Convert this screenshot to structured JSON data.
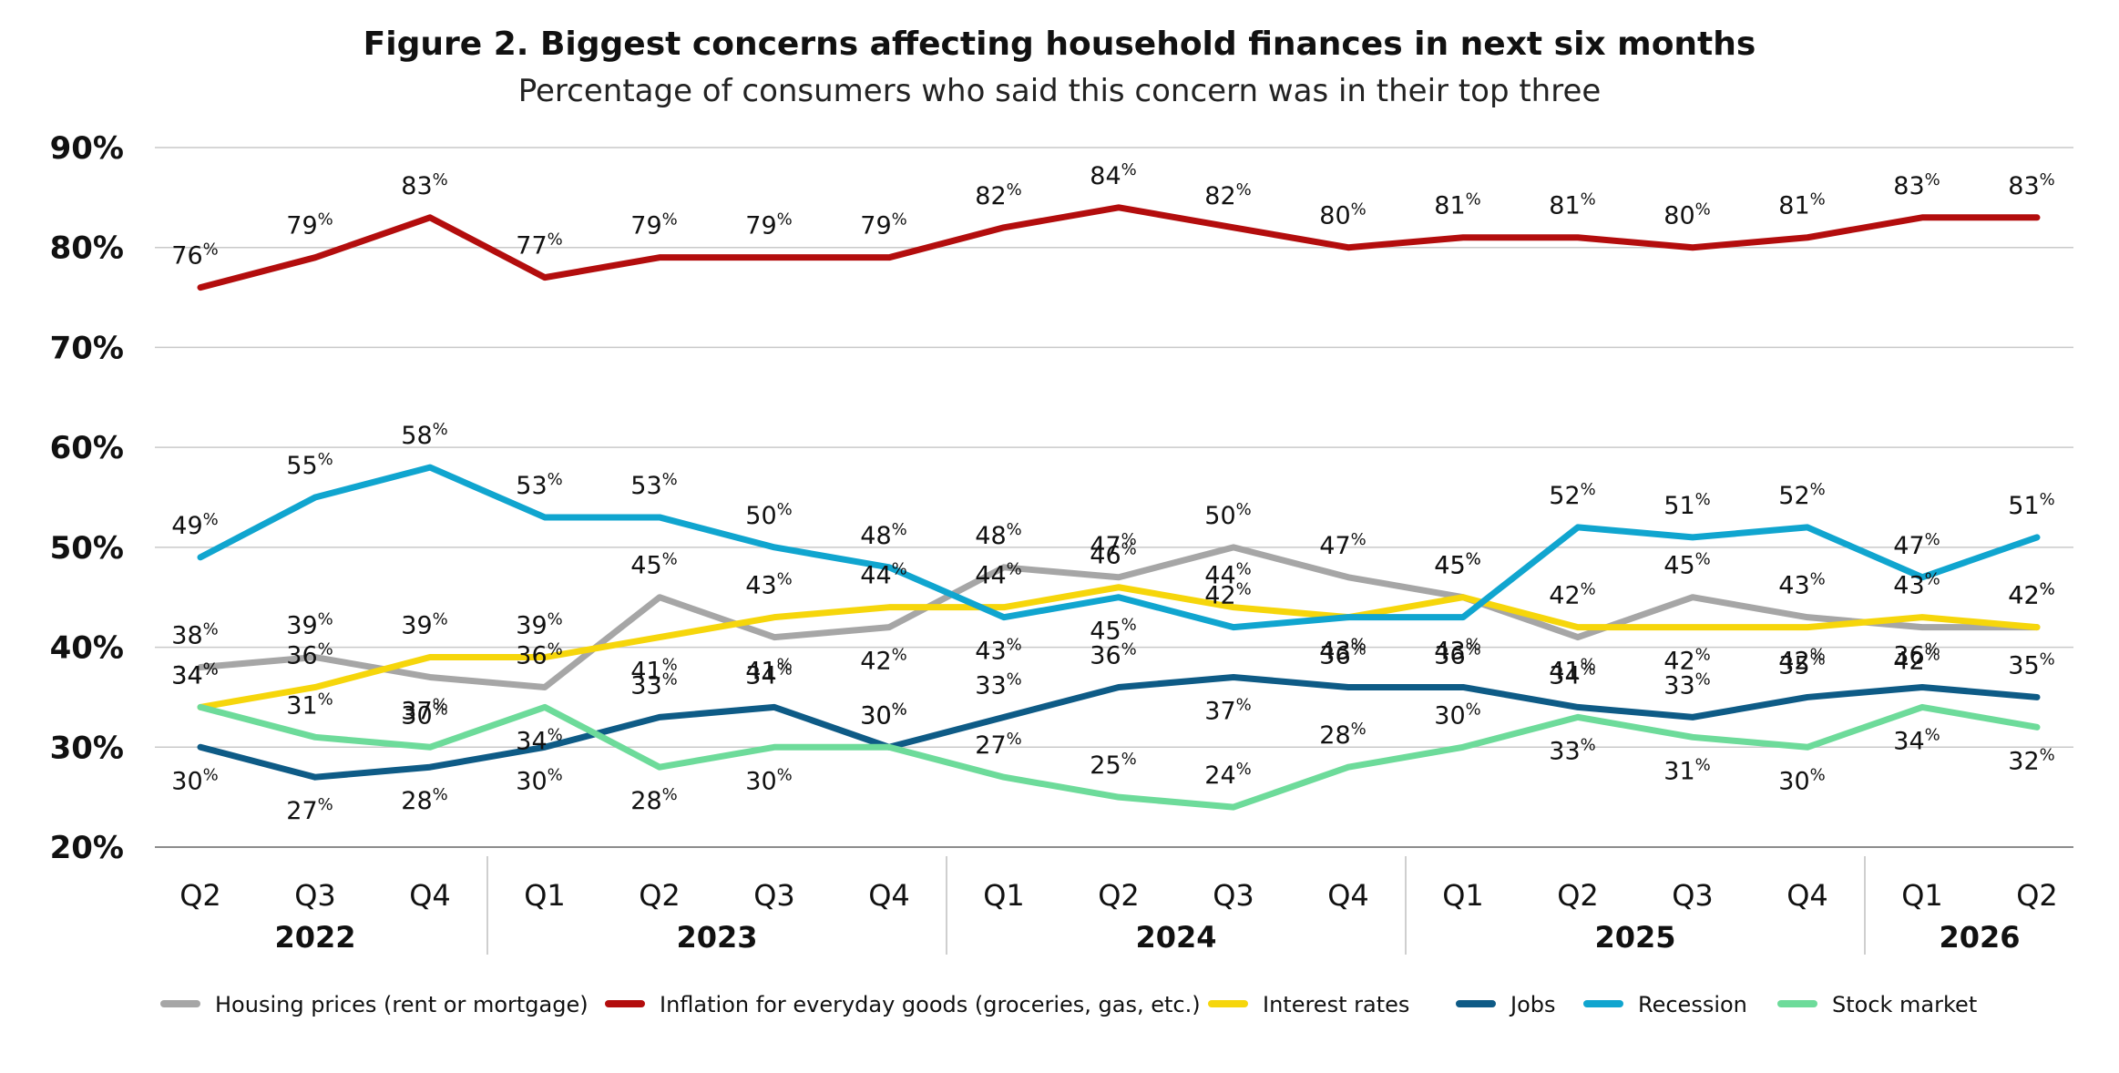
{
  "chart_data": {
    "type": "line",
    "title": "Figure 2. Biggest concerns affecting household finances in next six months",
    "subtitle": "Percentage of consumers who said this concern was in their top three",
    "x_categories": [
      "Q2",
      "Q3",
      "Q4",
      "Q1",
      "Q2",
      "Q3",
      "Q4",
      "Q1",
      "Q2",
      "Q3",
      "Q4",
      "Q1",
      "Q2",
      "Q3",
      "Q4",
      "Q1",
      "Q2"
    ],
    "year_groups": [
      {
        "year": "2022",
        "start": 0,
        "end": 2
      },
      {
        "year": "2023",
        "start": 3,
        "end": 6
      },
      {
        "year": "2024",
        "start": 7,
        "end": 10
      },
      {
        "year": "2025",
        "start": 11,
        "end": 14
      },
      {
        "year": "2026",
        "start": 15,
        "end": 16
      }
    ],
    "y_ticks": [
      "20%",
      "30%",
      "40%",
      "50%",
      "60%",
      "70%",
      "80%",
      "90%"
    ],
    "ylim": [
      20,
      90
    ],
    "grid": true,
    "legend_position": "bottom",
    "series": [
      {
        "name": "Housing prices (rent or mortgage)",
        "color": "#a6a6a6",
        "values": [
          38,
          39,
          37,
          36,
          45,
          41,
          42,
          48,
          47,
          50,
          47,
          45,
          41,
          45,
          43,
          42,
          42
        ],
        "labels": [
          "38",
          "39",
          "37",
          "36",
          "45",
          "41",
          "42",
          "48",
          "47",
          "50",
          "47",
          "45",
          "41",
          "45",
          "43",
          "42",
          "42"
        ]
      },
      {
        "name": "Inflation for everyday goods (groceries, gas, etc.)",
        "color": "#b30d0d",
        "values": [
          76,
          79,
          83,
          77,
          79,
          79,
          79,
          82,
          84,
          82,
          80,
          81,
          81,
          80,
          81,
          83,
          83
        ],
        "labels": [
          "76",
          "79",
          "83",
          "77",
          "79",
          "79",
          "79",
          "82",
          "84",
          "82",
          "80",
          "81",
          "81",
          "80",
          "81",
          "83",
          "83"
        ]
      },
      {
        "name": "Interest rates",
        "color": "#f6d60b",
        "values": [
          34,
          36,
          39,
          39,
          41,
          43,
          44,
          44,
          46,
          44,
          43,
          45,
          42,
          42,
          42,
          43,
          42
        ],
        "labels": [
          "34",
          "36",
          "39",
          "39",
          "41",
          "43",
          "44",
          "44",
          "46",
          "44",
          "43",
          "45",
          "42",
          "42",
          "42",
          "43",
          "42"
        ]
      },
      {
        "name": "Jobs",
        "color": "#0e5b86",
        "values": [
          30,
          27,
          28,
          30,
          33,
          34,
          30,
          33,
          36,
          37,
          36,
          36,
          34,
          33,
          35,
          36,
          35
        ],
        "labels": [
          "30",
          "27",
          "28",
          "30",
          "33",
          "34",
          "30",
          "33",
          "36",
          "37",
          "36",
          "36",
          "34",
          "33",
          "35",
          "36",
          "35"
        ]
      },
      {
        "name": "Recession",
        "color": "#10a5cf",
        "values": [
          49,
          55,
          58,
          53,
          53,
          50,
          48,
          43,
          45,
          42,
          43,
          43,
          52,
          51,
          52,
          47,
          51
        ],
        "labels": [
          "49",
          "55",
          "58",
          "53",
          "53",
          "50",
          "48",
          "43",
          "45",
          "42",
          "43",
          "43",
          "52",
          "51",
          "52",
          "47",
          "51"
        ]
      },
      {
        "name": "Stock market",
        "color": "#6ddb9a",
        "values": [
          34,
          31,
          30,
          34,
          28,
          30,
          30,
          27,
          25,
          24,
          28,
          30,
          33,
          31,
          30,
          34,
          32
        ],
        "labels": [
          "34",
          "31",
          "30",
          "34",
          "28",
          "30",
          "30",
          "27",
          "25",
          "24",
          "28",
          "30",
          "33",
          "31",
          "30",
          "34",
          "32"
        ]
      }
    ]
  }
}
